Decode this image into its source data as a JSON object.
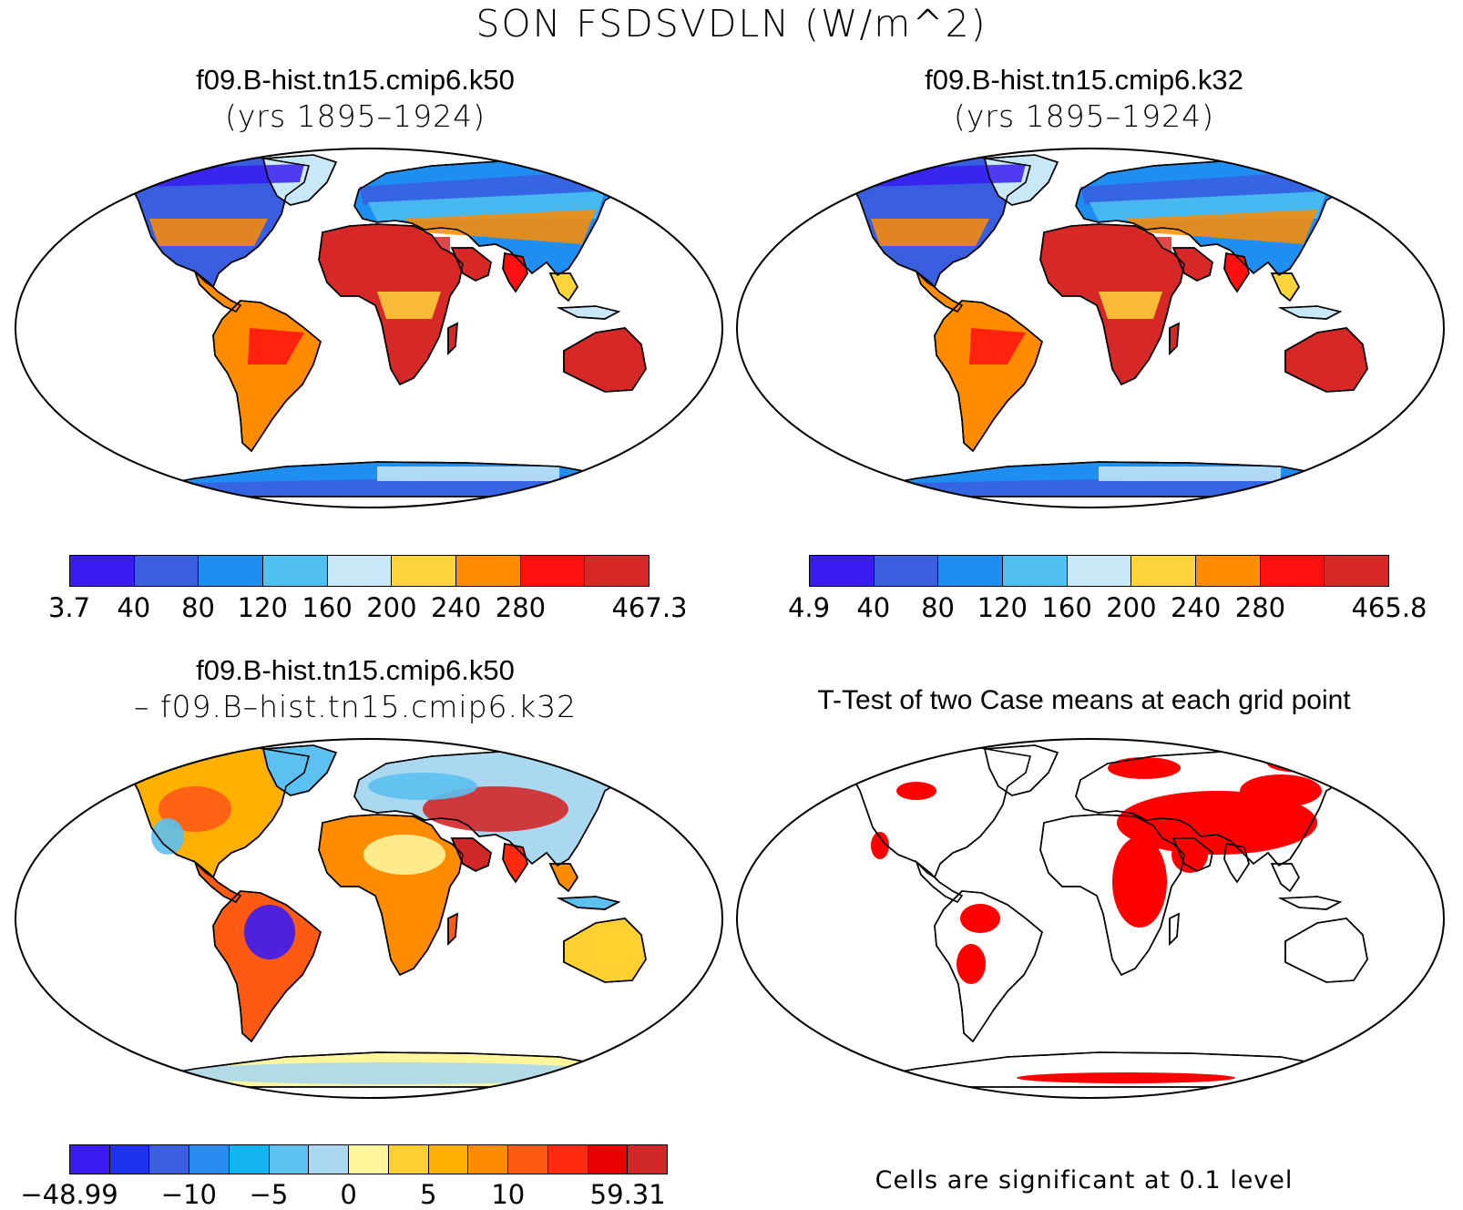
{
  "title": "SON FSDSVDLN (W/m^2)",
  "panels": [
    {
      "id": "k50",
      "title_line1": "f09.B-hist.tn15.cmip6.k50",
      "title_line2": "(yrs 1895–1924)",
      "colorbar": {
        "colors": [
          "#3a1cf0",
          "#3a5ee0",
          "#1e8ff0",
          "#4fc0f0",
          "#c8e8f8",
          "#ffd33a",
          "#ff8c00",
          "#ff1010",
          "#d72828"
        ],
        "tick_labels": [
          "3.7",
          "40",
          "80",
          "120",
          "160",
          "200",
          "240",
          "280",
          "467.3"
        ]
      }
    },
    {
      "id": "k32",
      "title_line1": "f09.B-hist.tn15.cmip6.k32",
      "title_line2": "(yrs 1895–1924)",
      "colorbar": {
        "colors": [
          "#3a1cf0",
          "#3a5ee0",
          "#1e8ff0",
          "#4fc0f0",
          "#c8e8f8",
          "#ffd33a",
          "#ff8c00",
          "#ff1010",
          "#d72828"
        ],
        "tick_labels": [
          "4.9",
          "40",
          "80",
          "120",
          "160",
          "200",
          "240",
          "280",
          "465.8"
        ]
      }
    },
    {
      "id": "diff",
      "title_line1": "f09.B-hist.tn15.cmip6.k50",
      "title_line2": "– f09.B–hist.tn15.cmip6.k32",
      "colorbar": {
        "colors": [
          "#3a1cf0",
          "#1f32f0",
          "#3a60e0",
          "#2b8cf0",
          "#14b4f0",
          "#5cc0f0",
          "#aad8f0",
          "#fff59a",
          "#ffd030",
          "#ffb000",
          "#ff8c00",
          "#ff5a14",
          "#ff2a10",
          "#e60000",
          "#d02828"
        ],
        "tick_labels": [
          "−48.99",
          "−10",
          "−5",
          "0",
          "5",
          "10",
          "59.31"
        ]
      }
    },
    {
      "id": "ttest",
      "title_line1": "T-Test of two Case means at each grid point",
      "footnote": "Cells are significant at 0.1 level",
      "colors": {
        "significant": "#ff0000"
      }
    }
  ]
}
